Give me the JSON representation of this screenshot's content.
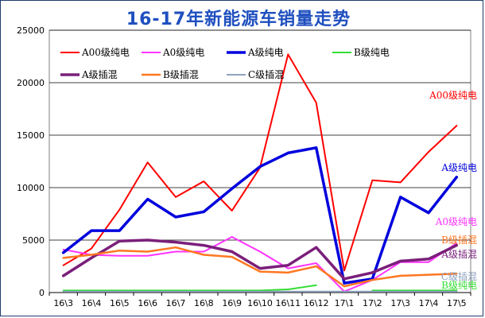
{
  "chart_data": {
    "type": "line",
    "title": "16-17年新能源车销量走势",
    "xlabel": "",
    "ylabel": "",
    "ylim": [
      0,
      25000
    ],
    "yticks": [
      0,
      5000,
      10000,
      15000,
      20000,
      25000
    ],
    "grid": true,
    "legend_position": "top-left",
    "categories": [
      "16\\3",
      "16\\4",
      "16\\5",
      "16\\6",
      "16\\7",
      "16\\8",
      "16\\9",
      "16\\10",
      "16\\11",
      "16\\12",
      "17\\1",
      "17\\2",
      "17\\3",
      "17\\4",
      "17\\5"
    ],
    "series": [
      {
        "name": "A00级纯电",
        "color": "#ff0000",
        "width": 2,
        "values": [
          2600,
          4200,
          7900,
          12400,
          9100,
          10600,
          7800,
          11900,
          22700,
          18100,
          2100,
          10700,
          10500,
          13400,
          15900
        ]
      },
      {
        "name": "A0级纯电",
        "color": "#ff33ff",
        "width": 2,
        "values": [
          4100,
          3600,
          3500,
          3500,
          3900,
          3900,
          5300,
          3900,
          2300,
          2800,
          100,
          1200,
          2900,
          2900,
          4700
        ]
      },
      {
        "name": "A级纯电",
        "color": "#0000dd",
        "width": 3.5,
        "values": [
          3800,
          5900,
          5900,
          8900,
          7200,
          7700,
          9900,
          12000,
          13300,
          13800,
          900,
          1300,
          9100,
          7600,
          11000
        ]
      },
      {
        "name": "B级纯电",
        "color": "#33dd33",
        "width": 2,
        "values": [
          200,
          200,
          200,
          200,
          200,
          200,
          200,
          200,
          300,
          700,
          null,
          200,
          200,
          200,
          200
        ]
      },
      {
        "name": "A级插混",
        "color": "#7a1f7a",
        "width": 3.5,
        "values": [
          1600,
          3300,
          4900,
          5000,
          4800,
          4500,
          3900,
          2300,
          2600,
          4300,
          1300,
          1900,
          3000,
          3200,
          4500
        ]
      },
      {
        "name": "B级插混",
        "color": "#ff7722",
        "width": 2.5,
        "values": [
          3300,
          3600,
          4000,
          3900,
          4300,
          3600,
          3400,
          2000,
          1900,
          2500,
          600,
          1200,
          1600,
          1700,
          1800
        ]
      },
      {
        "name": "C级插混",
        "color": "#8fa3bf",
        "width": 2,
        "values": [
          100,
          100,
          100,
          100,
          100,
          100,
          100,
          100,
          100,
          100,
          100,
          100,
          100,
          100,
          100
        ]
      }
    ],
    "end_labels": [
      {
        "text": "A00级纯电",
        "color": "#ff0000"
      },
      {
        "text": "A级纯电",
        "color": "#0000dd"
      },
      {
        "text": "A0级纯电",
        "color": "#ff33ff"
      },
      {
        "text": "B级插混",
        "color": "#ff7722"
      },
      {
        "text": "A级插混",
        "color": "#7a1f7a"
      },
      {
        "text": "C级插混",
        "color": "#8fa3bf"
      },
      {
        "text": "B级纯电",
        "color": "#33dd33"
      }
    ]
  }
}
